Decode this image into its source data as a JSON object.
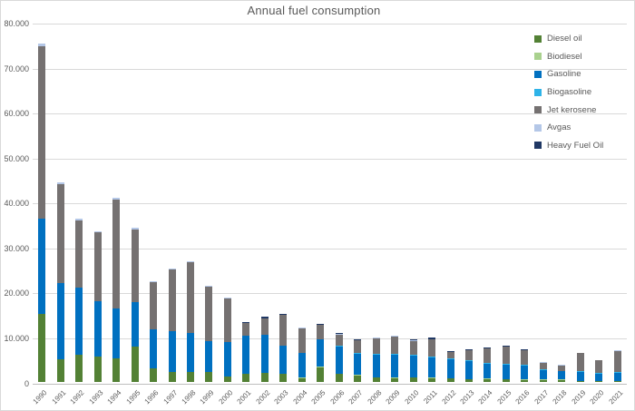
{
  "title": "Annual fuel consumption",
  "chart_data": {
    "type": "bar",
    "stacked": true,
    "title": "Annual fuel consumption",
    "xlabel": "",
    "ylabel": "",
    "ylim": [
      0,
      80000
    ],
    "grid": "horizontal-only",
    "gridline_interval": 10000,
    "legend_position": "top-right",
    "y_ticks": [
      "0",
      "10.000",
      "20.000",
      "30.000",
      "40.000",
      "50.000",
      "60.000",
      "70.000",
      "80.000"
    ],
    "categories": [
      "1990",
      "1991",
      "1992",
      "1993",
      "1994",
      "1995",
      "1996",
      "1997",
      "1998",
      "1999",
      "2000",
      "2001",
      "2002",
      "2003",
      "2004",
      "2005",
      "2006",
      "2007",
      "2008",
      "2009",
      "2010",
      "2011",
      "2012",
      "2013",
      "2014",
      "2015",
      "2016",
      "2017",
      "2018",
      "2019",
      "2020",
      "2021"
    ],
    "series": [
      {
        "name": "Diesel oil",
        "color": "#538135",
        "values": [
          15200,
          5100,
          6000,
          5600,
          5200,
          7900,
          3100,
          2300,
          2300,
          2200,
          1300,
          1800,
          2000,
          1800,
          900,
          3300,
          1800,
          1500,
          1000,
          900,
          1000,
          900,
          800,
          550,
          650,
          550,
          500,
          500,
          500,
          250,
          200,
          150
        ]
      },
      {
        "name": "Biodiesel",
        "color": "#a9d18e",
        "values": [
          0,
          0,
          0,
          0,
          0,
          0,
          0,
          0,
          0,
          0,
          0,
          0,
          0,
          0,
          100,
          150,
          100,
          200,
          100,
          100,
          100,
          100,
          100,
          100,
          100,
          100,
          100,
          100,
          100,
          50,
          50,
          50
        ]
      },
      {
        "name": "Gasoline",
        "color": "#0070c0",
        "values": [
          21100,
          16800,
          14900,
          12400,
          11200,
          9800,
          8600,
          9000,
          8700,
          6800,
          7500,
          8500,
          8500,
          6200,
          5400,
          6000,
          6000,
          4600,
          5000,
          5100,
          4700,
          4400,
          4200,
          4000,
          3300,
          3200,
          3000,
          2100,
          1800,
          2000,
          1650,
          1900
        ]
      },
      {
        "name": "Biogasoline",
        "color": "#2eb3e8",
        "values": [
          0,
          0,
          0,
          0,
          0,
          0,
          0,
          0,
          0,
          0,
          0,
          0,
          0,
          0,
          0,
          100,
          100,
          100,
          100,
          100,
          200,
          200,
          200,
          200,
          200,
          200,
          200,
          100,
          100,
          100,
          100,
          100
        ]
      },
      {
        "name": "Jet kerosene",
        "color": "#757171",
        "values": [
          38300,
          22000,
          15000,
          15200,
          24100,
          16300,
          10500,
          13800,
          15600,
          12200,
          9800,
          2800,
          3600,
          6900,
          5600,
          3100,
          2600,
          2800,
          3500,
          4000,
          3100,
          3800,
          1300,
          2200,
          3200,
          3800,
          3200,
          1500,
          1100,
          4000,
          2800,
          4600
        ]
      },
      {
        "name": "Avgas",
        "color": "#b4c7e7",
        "values": [
          700,
          500,
          400,
          300,
          400,
          300,
          200,
          200,
          200,
          200,
          200,
          100,
          100,
          100,
          100,
          100,
          100,
          100,
          100,
          100,
          100,
          100,
          100,
          100,
          100,
          100,
          100,
          100,
          200,
          100,
          100,
          200
        ]
      },
      {
        "name": "Heavy Fuel Oil",
        "color": "#203864",
        "values": [
          0,
          0,
          0,
          0,
          0,
          0,
          0,
          0,
          0,
          0,
          0,
          200,
          300,
          100,
          100,
          200,
          200,
          100,
          100,
          100,
          300,
          300,
          100,
          100,
          200,
          100,
          100,
          100,
          0,
          0,
          0,
          0
        ]
      }
    ]
  },
  "colors": {
    "text": "#595959",
    "gridline": "#d9d9d9",
    "axis_line": "#bfbfbf",
    "background": "#ffffff"
  }
}
